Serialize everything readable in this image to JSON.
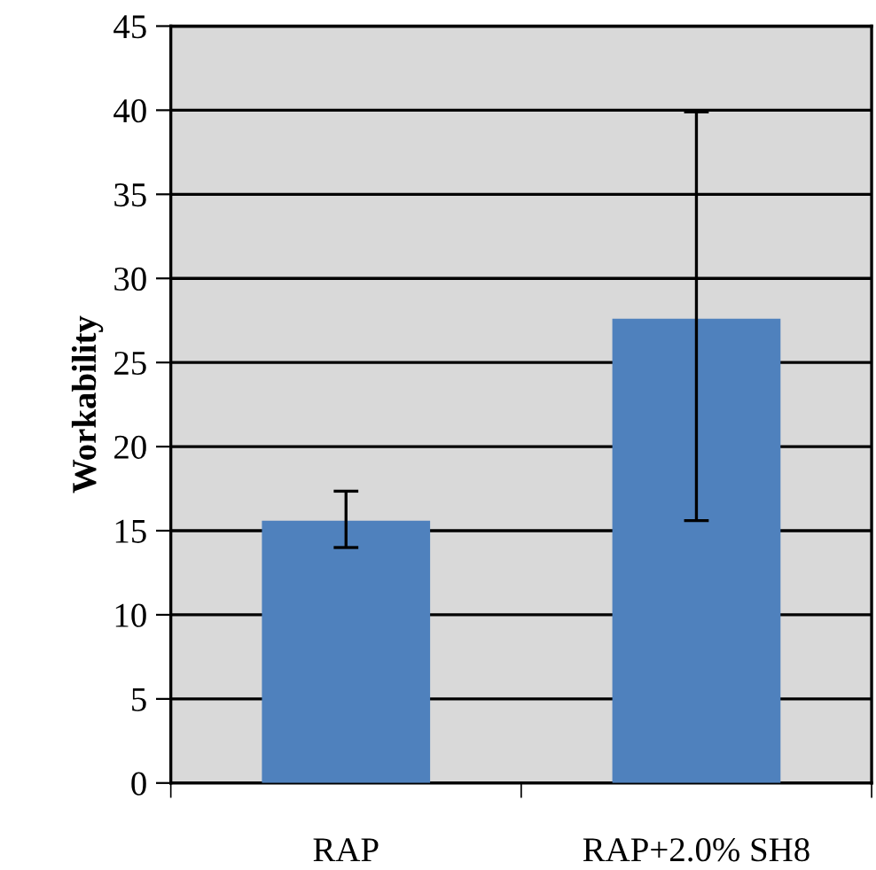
{
  "chart_data": {
    "type": "bar",
    "ylabel": "Workability",
    "categories": [
      "RAP",
      "RAP+2.0% SH8"
    ],
    "values": [
      15.6,
      27.6
    ],
    "color": "#4f81bd",
    "errors": [
      [
        14.0,
        17.35
      ],
      [
        15.6,
        39.9
      ]
    ],
    "ylim": [
      0,
      45
    ],
    "yticks": [
      0,
      5,
      10,
      15,
      20,
      25,
      30,
      35,
      40,
      45
    ],
    "grid": "y"
  }
}
